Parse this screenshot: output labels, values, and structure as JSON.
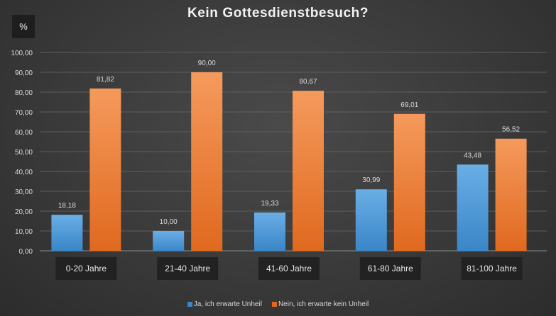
{
  "chart_data": {
    "type": "bar",
    "title": "Kein Gottesdienstbesuch?",
    "ylabel": "%",
    "xlabel": "",
    "ylim": [
      0,
      100
    ],
    "yticks": [
      "0,00",
      "10,00",
      "20,00",
      "30,00",
      "40,00",
      "50,00",
      "60,00",
      "70,00",
      "80,00",
      "90,00",
      "100,00"
    ],
    "categories": [
      "0-20 Jahre",
      "21-40 Jahre",
      "41-60 Jahre",
      "61-80 Jahre",
      "81-100 Jahre"
    ],
    "series": [
      {
        "name": "Ja, ich erwarte Unheil",
        "values": [
          18.18,
          10.0,
          19.33,
          30.99,
          43.48
        ],
        "labels": [
          "18,18",
          "10,00",
          "19,33",
          "30,99",
          "43,48"
        ],
        "color_top": "#6aaee6",
        "color_bottom": "#3a86c8"
      },
      {
        "name": "Nein, ich erwarte kein Unheil",
        "values": [
          81.82,
          90.0,
          80.67,
          69.01,
          56.52
        ],
        "labels": [
          "81,82",
          "90,00",
          "80,67",
          "69,01",
          "56,52"
        ],
        "color_top": "#f59a5c",
        "color_bottom": "#e0691f"
      }
    ],
    "grid": true,
    "legend_position": "bottom"
  }
}
